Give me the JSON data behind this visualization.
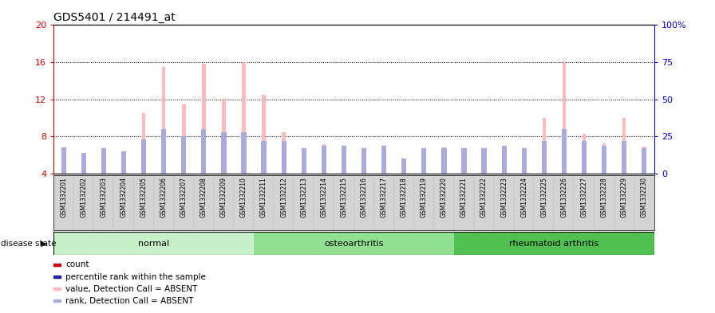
{
  "title": "GDS5401 / 214491_at",
  "samples": [
    "GSM1332201",
    "GSM1332202",
    "GSM1332203",
    "GSM1332204",
    "GSM1332205",
    "GSM1332206",
    "GSM1332207",
    "GSM1332208",
    "GSM1332209",
    "GSM1332210",
    "GSM1332211",
    "GSM1332212",
    "GSM1332213",
    "GSM1332214",
    "GSM1332215",
    "GSM1332216",
    "GSM1332217",
    "GSM1332218",
    "GSM1332219",
    "GSM1332220",
    "GSM1332221",
    "GSM1332222",
    "GSM1332223",
    "GSM1332224",
    "GSM1332225",
    "GSM1332226",
    "GSM1332227",
    "GSM1332228",
    "GSM1332229",
    "GSM1332230"
  ],
  "absent_values": [
    6.2,
    4.0,
    6.2,
    5.5,
    10.5,
    15.5,
    11.5,
    15.8,
    12.1,
    16.0,
    12.5,
    8.5,
    5.2,
    7.2,
    6.8,
    6.5,
    4.5,
    4.5,
    5.5,
    6.8,
    6.3,
    6.0,
    6.8,
    6.2,
    10.0,
    16.1,
    8.3,
    7.3,
    10.0,
    6.9
  ],
  "absent_ranks_pct": [
    18,
    14,
    17,
    15,
    23,
    30,
    25,
    30,
    28,
    28,
    22,
    22,
    17,
    19,
    19,
    17,
    19,
    10,
    17,
    17,
    17,
    17,
    19,
    17,
    22,
    30,
    22,
    19,
    22,
    17
  ],
  "groups": [
    {
      "label": "normal",
      "start": 0,
      "end": 10,
      "color": "#c8f0c8"
    },
    {
      "label": "osteoarthritis",
      "start": 10,
      "end": 20,
      "color": "#90e090"
    },
    {
      "label": "rheumatoid arthritis",
      "start": 20,
      "end": 30,
      "color": "#50c050"
    }
  ],
  "ylim_left": [
    4,
    20
  ],
  "ylim_right": [
    0,
    100
  ],
  "yticks_left": [
    4,
    8,
    12,
    16,
    20
  ],
  "yticks_right": [
    0,
    25,
    50,
    75,
    100
  ],
  "yticklabels_right": [
    "0",
    "25",
    "50",
    "75",
    "100%"
  ],
  "absent_bar_color": "#ffbbbb",
  "absent_rank_color": "#aaaadd",
  "present_bar_color": "#cc0000",
  "present_rank_color": "#2222aa",
  "bg_color": "#ffffff",
  "plot_bg_color": "#ffffff",
  "left_axis_color": "#cc0000",
  "right_axis_color": "#0000cc",
  "grid_dotted_at": [
    8,
    12,
    16
  ]
}
